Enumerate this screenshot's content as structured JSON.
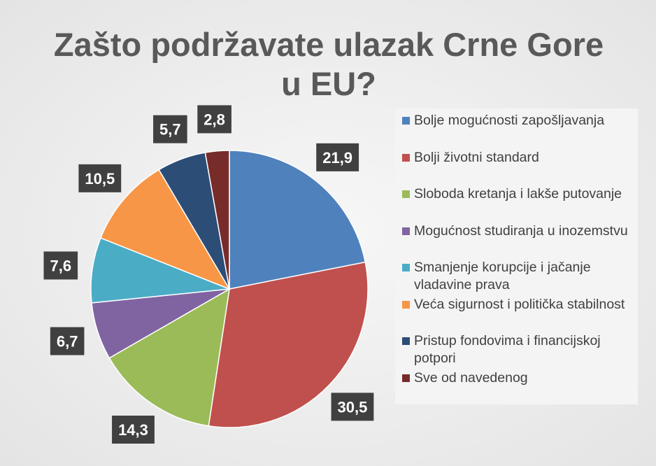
{
  "chart_data": {
    "type": "pie",
    "title": "Zašto podržavate ulazak Crne Gore u EU?",
    "categories": [
      "Bolje mogućnosti zapošljavanja",
      "Bolji životni standard",
      "Sloboda kretanja i lakše putovanje",
      "Mogućnost studiranja u inozemstvu",
      "Smanjenje korupcije i jačanje vladavine prava",
      "Veća sigurnost i politička stabilnost",
      "Pristup fondovima i financijskoj potpori",
      "Sve od navedenog"
    ],
    "values": [
      21.9,
      30.5,
      14.3,
      6.7,
      7.6,
      10.5,
      5.7,
      2.8
    ],
    "value_labels": [
      "21,9",
      "30,5",
      "14,3",
      "6,7",
      "7,6",
      "10,5",
      "5,7",
      "2,8"
    ],
    "colors": [
      "#4f81bd",
      "#c0504d",
      "#9bbb59",
      "#8064a2",
      "#4bacc6",
      "#f79646",
      "#2c4d75",
      "#772c2a"
    ],
    "legend": "right"
  }
}
